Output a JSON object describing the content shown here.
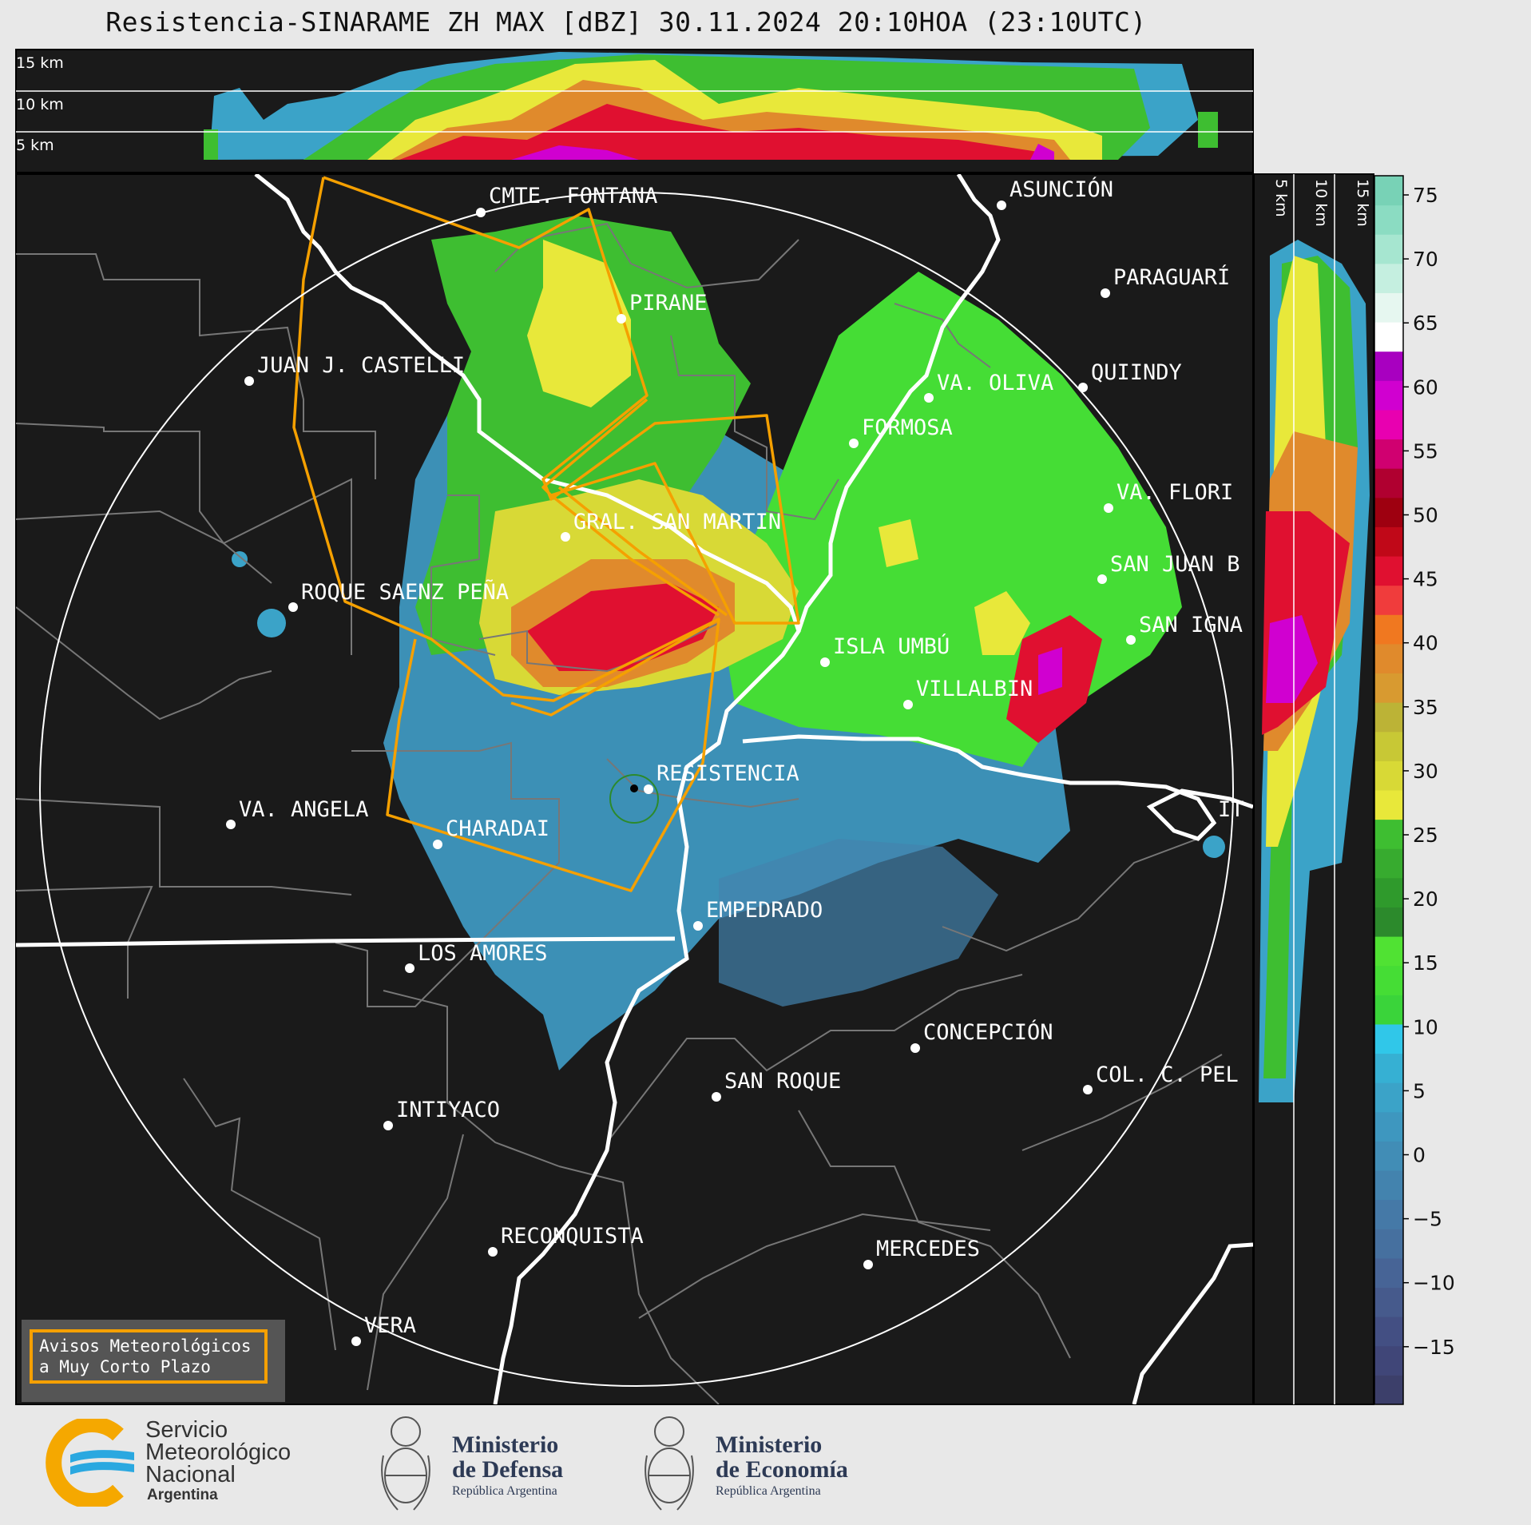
{
  "title": "Resistencia-SINARAME ZH MAX [dBZ] 30.11.2024 20:10HOA (23:10UTC)",
  "top_panel": {
    "height_labels": [
      "15 km",
      "10 km",
      "5 km"
    ]
  },
  "side_panel": {
    "height_labels": [
      "5 km",
      "10 km",
      "15 km"
    ]
  },
  "colorbar": {
    "ticks": [
      "75",
      "70",
      "65",
      "60",
      "55",
      "50",
      "45",
      "40",
      "35",
      "30",
      "25",
      "20",
      "15",
      "10",
      "5",
      "0",
      "−5",
      "−10",
      "−15"
    ],
    "colors": [
      "#3c3f6a",
      "#404678",
      "#434f83",
      "#465a8c",
      "#476496",
      "#46709f",
      "#4579a7",
      "#4383ae",
      "#418db6",
      "#3e97bf",
      "#3ba3c8",
      "#36b0d3",
      "#30c7e9",
      "#3ad43a",
      "#45dd35",
      "#50e233",
      "#2c8a2c",
      "#2f9a2c",
      "#37ab2f",
      "#3ebe31",
      "#e8e83a",
      "#d8d936",
      "#c8c835",
      "#bcb336",
      "#d89a30",
      "#e08a2c",
      "#f07820",
      "#f03c3c",
      "#e01030",
      "#c00818",
      "#9e0010",
      "#b00030",
      "#d00070",
      "#e800b0",
      "#d000d0",
      "#a800c0",
      "#ffffff",
      "#e6f7f0",
      "#c5efe0",
      "#a6e6d0",
      "#8bdcc2",
      "#78d2b6"
    ]
  },
  "places": [
    "CMTE. FONTANA",
    "ASUNCIÓN",
    "PARAGUARÍ",
    "PIRANE",
    "JUAN J. CASTELLI",
    "VA. OLIVA",
    "QUIINDY",
    "FORMOSA",
    "VA. FLORI",
    "GRAL. SAN MARTIN",
    "SAN JUAN B",
    "ROQUE SAENZ PEÑA",
    "SAN IGNA",
    "ISLA UMBÚ",
    "VILLALBIN",
    "RESISTENCIA",
    "VA. ANGELA",
    "CHARADAI",
    "IT",
    "EMPEDRADO",
    "LOS AMORES",
    "CONCEPCIÓN",
    "SAN ROQUE",
    "COL. C. PEL",
    "INTIYACO",
    "RECONQUISTA",
    "MERCEDES",
    "VERA"
  ],
  "warning_box": {
    "line1": "Avisos Meteorológicos",
    "line2": "a Muy Corto Plazo"
  },
  "footer": {
    "smn": {
      "line1": "Servicio",
      "line2": "Meteorológico",
      "line3": "Nacional",
      "line4": "Argentina"
    },
    "defensa": {
      "line1": "Ministerio",
      "line2": "de Defensa",
      "line3": "República Argentina"
    },
    "economia": {
      "line1": "Ministerio",
      "line2": "de Economía",
      "line3": "República Argentina"
    }
  },
  "accent_colors": {
    "warning_polygon": "#f5a000",
    "background": "#1a1a1a"
  }
}
